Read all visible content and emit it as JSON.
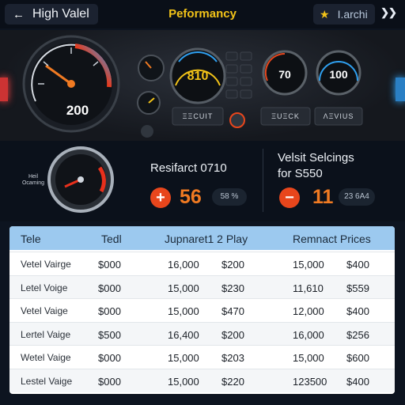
{
  "topbar": {
    "back_label": "High Valel",
    "back_icon": "arrow-left-icon",
    "title": "Peformancy",
    "search_label": "Ι.archi",
    "search_icon": "star-icon",
    "close_label": "❯❯"
  },
  "dashboard": {
    "main_gauge_value": "200",
    "center_gauge_value": "810",
    "right_gauge_1_value": "70",
    "right_gauge_2_value": "100",
    "button_label_1": "ΞΞCUIT",
    "button_label_2": "ΞUΞCK",
    "button_label_3": "ΛΞVIUS"
  },
  "stats": {
    "mini_gauge_label_1": "Heil",
    "mini_gauge_label_2": "Ocaming",
    "left": {
      "title": "Resifarct 0710",
      "sign": "+",
      "value": "56",
      "chip": "58 %"
    },
    "right": {
      "title_line1": "Velsit Selcings",
      "title_line2": "for S550",
      "sign": "−",
      "value": "11",
      "chip": "23 6A4"
    }
  },
  "table": {
    "headers": [
      "Tele",
      "Tedl",
      "Jupnaret1 2 Play",
      "Remnact Prices"
    ],
    "rows": [
      {
        "label": "Vetel Vairge",
        "price": "$000",
        "qty1": "16,000",
        "p1": "$200",
        "qty2": "15,000",
        "p2": "$400"
      },
      {
        "label": "Letel Voige",
        "price": "$000",
        "qty1": "15,000",
        "p1": "$230",
        "qty2": "11,610",
        "p2": "$559"
      },
      {
        "label": "Vetel Vaige",
        "price": "$000",
        "qty1": "15,000",
        "p1": "$470",
        "qty2": "12,000",
        "p2": "$400"
      },
      {
        "label": "Lertel Vaige",
        "price": "$500",
        "qty1": "16,400",
        "p1": "$200",
        "qty2": "16,000",
        "p2": "$256"
      },
      {
        "label": "Wetel Vaige",
        "price": "$000",
        "qty1": "15,000",
        "p1": "$203",
        "qty2": "15,000",
        "p2": "$600"
      },
      {
        "label": "Lestel Vaige",
        "price": "$000",
        "qty1": "15,000",
        "p1": "$220",
        "qty2": "123500",
        "p2": "$400"
      }
    ]
  },
  "colors": {
    "accent_yellow": "#f2c318",
    "accent_orange": "#f07a22",
    "header_blue": "#9cc9ef",
    "background": "#0d1420"
  }
}
